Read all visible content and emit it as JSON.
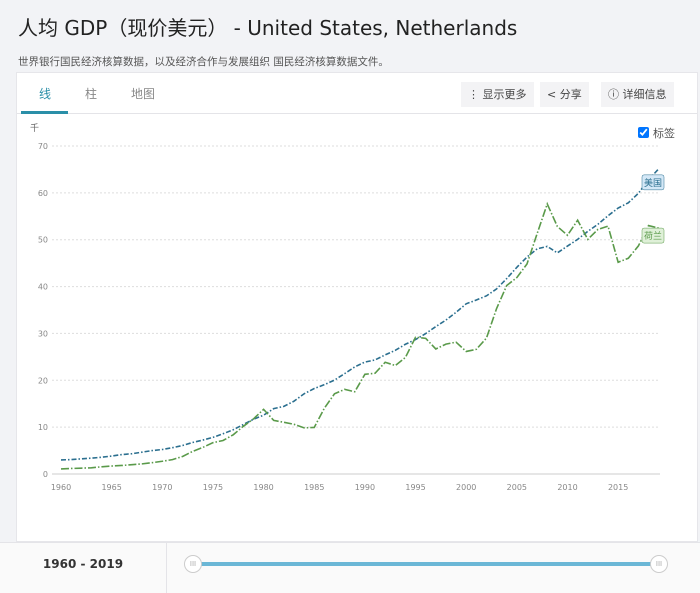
{
  "header": {
    "title": "人均 GDP（现价美元） - United States, Netherlands",
    "source": "世界银行国民经济核算数据，以及经济合作与发展组织 国民经济核算数据文件。"
  },
  "tabs": [
    {
      "label": "线"
    },
    {
      "label": "柱"
    },
    {
      "label": "地图"
    }
  ],
  "toolbar": {
    "more": "⋮ 显示更多",
    "share": "< 分享",
    "details": "ⓘ 详细信息"
  },
  "labels_toggle": {
    "label": "标签",
    "checked": true
  },
  "range": {
    "label": "1960 - 2019",
    "handle": "III",
    "start": 1960,
    "end": 2019
  },
  "chart_data": {
    "type": "line",
    "ylabel": "千",
    "ylim": [
      0,
      70
    ],
    "yticks": [
      "0",
      "10",
      "20",
      "30",
      "40",
      "50",
      "60",
      "70"
    ],
    "xticks": [
      "1960",
      "1965",
      "1970",
      "1975",
      "1980",
      "1985",
      "1990",
      "1995",
      "2000",
      "2005",
      "2010",
      "2015"
    ],
    "grid": true,
    "x": [
      1960,
      1961,
      1962,
      1963,
      1964,
      1965,
      1966,
      1967,
      1968,
      1969,
      1970,
      1971,
      1972,
      1973,
      1974,
      1975,
      1976,
      1977,
      1978,
      1979,
      1980,
      1981,
      1982,
      1983,
      1984,
      1985,
      1986,
      1987,
      1988,
      1989,
      1990,
      1991,
      1992,
      1993,
      1994,
      1995,
      1996,
      1997,
      1998,
      1999,
      2000,
      2001,
      2002,
      2003,
      2004,
      2005,
      2006,
      2007,
      2008,
      2009,
      2010,
      2011,
      2012,
      2013,
      2014,
      2015,
      2016,
      2017,
      2018,
      2019
    ],
    "series": [
      {
        "name": "美国",
        "color": "#2b6f8f",
        "label_bg": "#d4e8f7",
        "values": [
          3.01,
          3.07,
          3.24,
          3.38,
          3.57,
          3.83,
          4.15,
          4.33,
          4.66,
          5.0,
          5.23,
          5.61,
          6.09,
          6.73,
          7.24,
          7.82,
          8.59,
          9.45,
          10.56,
          11.67,
          12.55,
          13.95,
          14.43,
          15.54,
          17.12,
          18.24,
          19.07,
          20.04,
          21.42,
          22.86,
          23.89,
          24.34,
          25.42,
          26.39,
          27.69,
          28.69,
          29.97,
          31.46,
          32.85,
          34.51,
          36.33,
          37.13,
          38.02,
          39.5,
          41.71,
          44.11,
          46.3,
          48.05,
          48.57,
          47.19,
          48.65,
          50.07,
          51.78,
          53.29,
          55.12,
          56.76,
          57.87,
          59.91,
          62.79,
          65.12
        ]
      },
      {
        "name": "荷兰",
        "color": "#5a9a4a",
        "label_bg": "#dff0d8",
        "values": [
          1.07,
          1.18,
          1.25,
          1.33,
          1.54,
          1.7,
          1.82,
          1.98,
          2.16,
          2.42,
          2.72,
          3.07,
          3.74,
          4.83,
          5.67,
          6.68,
          7.15,
          8.37,
          10.18,
          11.76,
          13.79,
          11.44,
          11.04,
          10.6,
          9.85,
          9.94,
          14.05,
          17.12,
          18.06,
          17.55,
          21.28,
          21.5,
          23.84,
          23.15,
          24.87,
          29.19,
          28.95,
          26.68,
          27.72,
          28.13,
          26.15,
          26.61,
          29.0,
          35.32,
          40.23,
          41.92,
          44.82,
          51.28,
          57.63,
          52.82,
          50.95,
          54.16,
          50.07,
          52.2,
          52.9,
          45.19,
          46.04,
          48.68,
          53.02,
          52.48
        ]
      }
    ]
  }
}
